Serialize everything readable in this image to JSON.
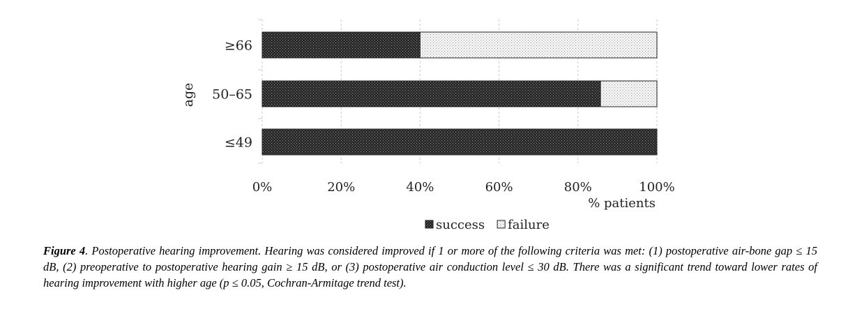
{
  "chart_data": {
    "type": "bar",
    "orientation": "horizontal",
    "stacked": true,
    "categories": [
      "≥66",
      "50–65",
      "≤49"
    ],
    "series": [
      {
        "name": "success",
        "values": [
          40,
          85.7,
          100
        ],
        "color": "#333333"
      },
      {
        "name": "failure",
        "values": [
          60,
          14.3,
          0
        ],
        "color": "#e8e8e8"
      }
    ],
    "xlabel": "% patients",
    "ylabel": "age",
    "xlim": [
      0,
      100
    ],
    "xticks": [
      "0%",
      "20%",
      "40%",
      "60%",
      "80%",
      "100%"
    ],
    "grid": true,
    "legend_position": "bottom"
  },
  "caption": {
    "label": "Figure 4",
    "text": ". Postoperative hearing improvement. Hearing was considered improved if 1 or more of the following criteria was met: (1) postoperative air-bone gap ≤ 15 dB, (2) preoperative to postoperative hearing gain ≥ 15 dB, or (3) postoperative air conduction level ≤ 30 dB. There was a significant trend toward lower rates of hearing improvement with higher age (p ≤ 0.05, Cochran-Armitage trend test)."
  }
}
